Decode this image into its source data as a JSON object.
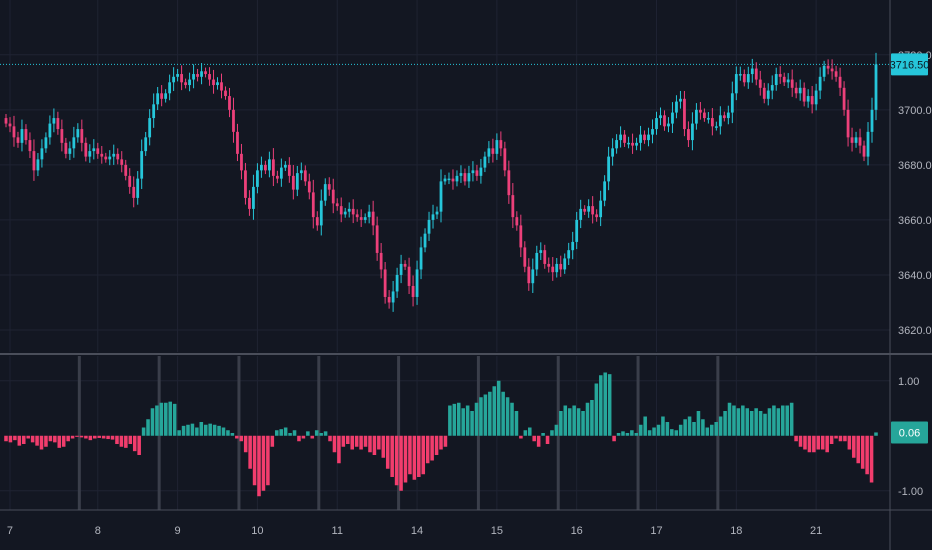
{
  "colors": {
    "background": "#131722",
    "grid": "#1f2332",
    "separator": "#4a4e5a",
    "session_divider": "#3a3e4a",
    "up": "#26c6da",
    "down": "#ec407a",
    "osc_up": "#26a69a",
    "osc_down": "#f23d6d",
    "last_price_line": "#26c6da",
    "text": "#b2b5be"
  },
  "chart_data": [
    {
      "type": "candlestick",
      "price_axis": {
        "ticks": [
          "3620.00",
          "3640.00",
          "3660.00",
          "3680.00",
          "3700.00",
          "3720.00"
        ],
        "ylim": [
          3612,
          3737
        ]
      },
      "last_price": {
        "value": 3716.5,
        "label": "3716.50"
      },
      "x_ticks": [
        {
          "label": "7",
          "index": 1
        },
        {
          "label": "8",
          "index": 23
        },
        {
          "label": "9",
          "index": 43
        },
        {
          "label": "10",
          "index": 63
        },
        {
          "label": "11",
          "index": 83
        },
        {
          "label": "14",
          "index": 103
        },
        {
          "label": "15",
          "index": 123
        },
        {
          "label": "16",
          "index": 143
        },
        {
          "label": "17",
          "index": 163
        },
        {
          "label": "18",
          "index": 183
        },
        {
          "label": "21",
          "index": 203
        }
      ],
      "grid": true,
      "close_series": [
        3695,
        3694,
        3690,
        3688,
        3693,
        3689,
        3685,
        3678,
        3682,
        3686,
        3690,
        3695,
        3697,
        3693,
        3688,
        3684,
        3686,
        3690,
        3693,
        3688,
        3683,
        3685,
        3686,
        3684,
        3683,
        3682,
        3683,
        3684,
        3682,
        3680,
        3676,
        3672,
        3668,
        3675,
        3685,
        3690,
        3697,
        3702,
        3706,
        3704,
        3706,
        3710,
        3712,
        3713,
        3710,
        3709,
        3711,
        3713,
        3712,
        3714,
        3713,
        3711,
        3709,
        3710,
        3707,
        3705,
        3700,
        3692,
        3684,
        3678,
        3668,
        3664,
        3672,
        3678,
        3680,
        3678,
        3682,
        3676,
        3675,
        3679,
        3680,
        3676,
        3671,
        3677,
        3678,
        3674,
        3670,
        3661,
        3658,
        3667,
        3673,
        3671,
        3666,
        3665,
        3662,
        3663,
        3664,
        3662,
        3661,
        3660,
        3661,
        3663,
        3658,
        3648,
        3642,
        3632,
        3630,
        3634,
        3640,
        3644,
        3643,
        3636,
        3632,
        3642,
        3650,
        3655,
        3660,
        3662,
        3663,
        3674,
        3675,
        3675,
        3674,
        3676,
        3677,
        3674,
        3677,
        3678,
        3676,
        3679,
        3683,
        3686,
        3684,
        3689,
        3686,
        3678,
        3669,
        3661,
        3658,
        3650,
        3643,
        3637,
        3642,
        3648,
        3649,
        3644,
        3643,
        3641,
        3644,
        3642,
        3646,
        3649,
        3652,
        3660,
        3664,
        3663,
        3665,
        3662,
        3661,
        3667,
        3674,
        3683,
        3686,
        3689,
        3691,
        3688,
        3688,
        3687,
        3688,
        3691,
        3689,
        3691,
        3693,
        3697,
        3698,
        3694,
        3695,
        3699,
        3703,
        3704,
        3693,
        3689,
        3695,
        3700,
        3699,
        3697,
        3697,
        3694,
        3694,
        3698,
        3697,
        3699,
        3706,
        3713,
        3713,
        3710,
        3713,
        3715,
        3711,
        3708,
        3704,
        3707,
        3709,
        3713,
        3712,
        3710,
        3711,
        3708,
        3706,
        3708,
        3703,
        3705,
        3702,
        3707,
        3712,
        3716,
        3715,
        3714,
        3712,
        3708,
        3700,
        3690,
        3688,
        3690,
        3687,
        3683,
        3692,
        3700,
        3716.5
      ],
      "open_series": [
        3697,
        3695,
        3694,
        3690,
        3688,
        3693,
        3689,
        3685,
        3678,
        3682,
        3686,
        3690,
        3695,
        3697,
        3693,
        3688,
        3684,
        3686,
        3690,
        3693,
        3688,
        3683,
        3685,
        3686,
        3684,
        3683,
        3682,
        3683,
        3684,
        3682,
        3680,
        3676,
        3672,
        3668,
        3675,
        3685,
        3690,
        3697,
        3702,
        3706,
        3704,
        3706,
        3710,
        3712,
        3713,
        3710,
        3709,
        3711,
        3713,
        3712,
        3714,
        3713,
        3711,
        3709,
        3710,
        3707,
        3705,
        3700,
        3692,
        3684,
        3678,
        3668,
        3664,
        3672,
        3678,
        3680,
        3678,
        3682,
        3676,
        3675,
        3679,
        3680,
        3676,
        3671,
        3677,
        3678,
        3674,
        3670,
        3661,
        3658,
        3667,
        3673,
        3671,
        3666,
        3665,
        3662,
        3663,
        3664,
        3662,
        3661,
        3660,
        3661,
        3663,
        3658,
        3648,
        3642,
        3632,
        3630,
        3634,
        3640,
        3644,
        3643,
        3636,
        3632,
        3642,
        3650,
        3655,
        3660,
        3662,
        3663,
        3674,
        3675,
        3675,
        3674,
        3676,
        3677,
        3674,
        3677,
        3678,
        3676,
        3679,
        3683,
        3686,
        3684,
        3689,
        3686,
        3678,
        3669,
        3661,
        3658,
        3650,
        3643,
        3637,
        3642,
        3648,
        3649,
        3644,
        3643,
        3641,
        3644,
        3642,
        3646,
        3649,
        3652,
        3660,
        3664,
        3663,
        3665,
        3662,
        3661,
        3667,
        3674,
        3683,
        3686,
        3689,
        3691,
        3688,
        3688,
        3687,
        3688,
        3691,
        3689,
        3691,
        3693,
        3697,
        3698,
        3694,
        3695,
        3699,
        3703,
        3704,
        3693,
        3689,
        3695,
        3700,
        3699,
        3697,
        3697,
        3694,
        3694,
        3698,
        3697,
        3699,
        3706,
        3713,
        3713,
        3710,
        3713,
        3715,
        3711,
        3708,
        3704,
        3707,
        3709,
        3713,
        3712,
        3710,
        3711,
        3708,
        3706,
        3708,
        3703,
        3705,
        3702,
        3707,
        3712,
        3716,
        3715,
        3714,
        3712,
        3708,
        3700,
        3690,
        3688,
        3690,
        3687,
        3683,
        3692,
        3700
      ]
    },
    {
      "type": "bar",
      "axis_ticks": [
        "1.00",
        "-1.00"
      ],
      "ylim": [
        -1.35,
        1.45
      ],
      "last_value": {
        "value": 0.06,
        "label": "0.06"
      },
      "session_dividers": [
        18,
        38,
        58,
        78,
        98,
        118,
        138,
        158,
        178
      ],
      "values": [
        -0.1,
        -0.12,
        -0.08,
        -0.18,
        -0.15,
        -0.05,
        -0.12,
        -0.18,
        -0.25,
        -0.2,
        -0.1,
        -0.12,
        -0.22,
        -0.2,
        -0.1,
        -0.05,
        -0.02,
        -0.03,
        -0.05,
        -0.08,
        -0.05,
        -0.04,
        -0.05,
        -0.06,
        -0.07,
        -0.15,
        -0.2,
        -0.22,
        -0.15,
        -0.28,
        -0.35,
        0.15,
        0.3,
        0.5,
        0.55,
        0.6,
        0.6,
        0.62,
        0.58,
        0.1,
        0.18,
        0.2,
        0.22,
        0.15,
        0.25,
        0.2,
        0.22,
        0.2,
        0.18,
        0.15,
        0.1,
        0.05,
        -0.05,
        -0.1,
        -0.3,
        -0.6,
        -0.9,
        -1.1,
        -1.0,
        -0.9,
        -0.2,
        0.1,
        0.12,
        0.15,
        0.05,
        0.1,
        -0.1,
        -0.05,
        0.08,
        -0.05,
        0.1,
        0.05,
        0.08,
        -0.1,
        -0.3,
        -0.5,
        -0.2,
        -0.15,
        -0.25,
        -0.2,
        -0.25,
        -0.2,
        -0.3,
        -0.35,
        -0.25,
        -0.4,
        -0.6,
        -0.75,
        -0.9,
        -1.0,
        -0.85,
        -0.7,
        -0.8,
        -0.75,
        -0.7,
        -0.5,
        -0.45,
        -0.35,
        -0.25,
        -0.2,
        0.55,
        0.58,
        0.6,
        0.5,
        0.55,
        0.45,
        0.6,
        0.7,
        0.75,
        0.8,
        0.9,
        1.0,
        0.8,
        0.7,
        0.6,
        0.45,
        -0.05,
        0.1,
        0.15,
        -0.1,
        -0.2,
        0.05,
        -0.15,
        0.1,
        0.2,
        0.45,
        0.55,
        0.5,
        0.55,
        0.5,
        0.45,
        0.6,
        0.65,
        0.95,
        1.1,
        1.15,
        1.12,
        -0.1,
        0.05,
        0.08,
        0.05,
        0.1,
        0.05,
        0.2,
        0.35,
        0.1,
        0.15,
        0.2,
        0.35,
        0.25,
        0.12,
        0.1,
        0.2,
        0.3,
        0.35,
        0.25,
        0.45,
        0.3,
        0.15,
        0.2,
        0.25,
        0.35,
        0.45,
        0.6,
        0.55,
        0.5,
        0.55,
        0.5,
        0.45,
        0.5,
        0.45,
        0.4,
        0.5,
        0.55,
        0.5,
        0.55,
        0.55,
        0.6,
        -0.1,
        -0.2,
        -0.25,
        -0.3,
        -0.3,
        -0.25,
        -0.25,
        -0.3,
        -0.15,
        -0.05,
        -0.1,
        -0.1,
        -0.25,
        -0.4,
        -0.5,
        -0.6,
        -0.7,
        -0.85,
        0.06
      ]
    }
  ]
}
